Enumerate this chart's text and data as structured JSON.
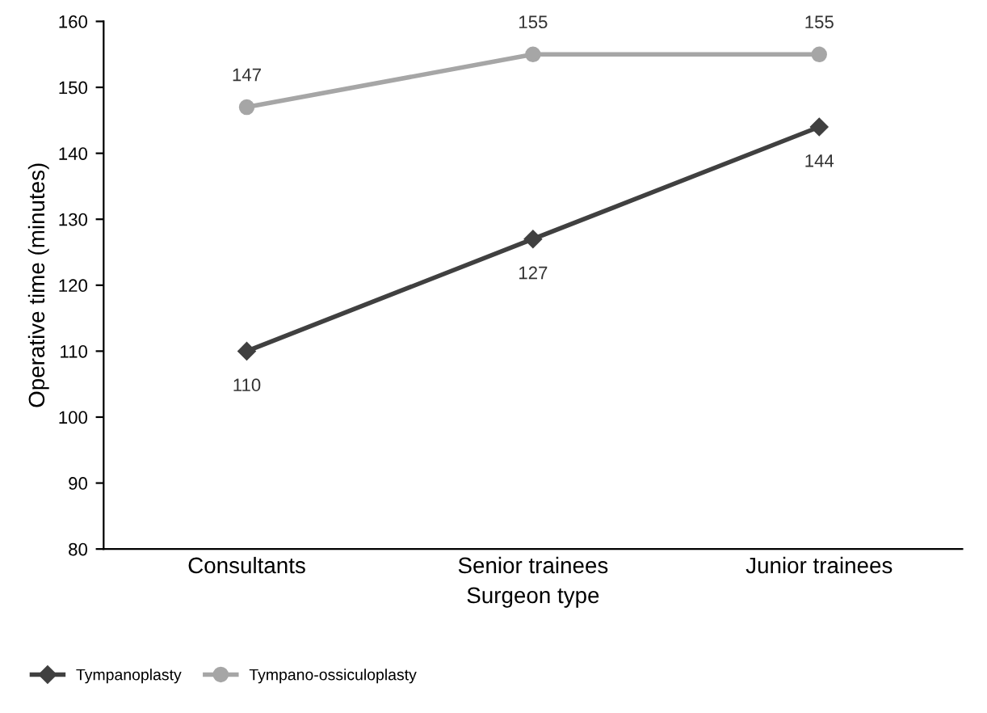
{
  "chart_data": {
    "type": "line",
    "xlabel": "Surgeon type",
    "ylabel": "Operative time (minutes)",
    "categories": [
      "Consultants",
      "Senior trainees",
      "Junior trainees"
    ],
    "series": [
      {
        "name": "Tympanoplasty",
        "color": "#404040",
        "marker": "diamond",
        "values": [
          110,
          127,
          144
        ]
      },
      {
        "name": "Tympano-ossiculoplasty",
        "color": "#a6a6a6",
        "marker": "circle",
        "values": [
          147,
          155,
          155
        ]
      }
    ],
    "ylim": [
      80,
      160
    ],
    "yticks": [
      80,
      90,
      100,
      110,
      120,
      130,
      140,
      150,
      160
    ],
    "data_labels": true,
    "grid": false,
    "legend": "bottom left",
    "line_style": "solid"
  }
}
